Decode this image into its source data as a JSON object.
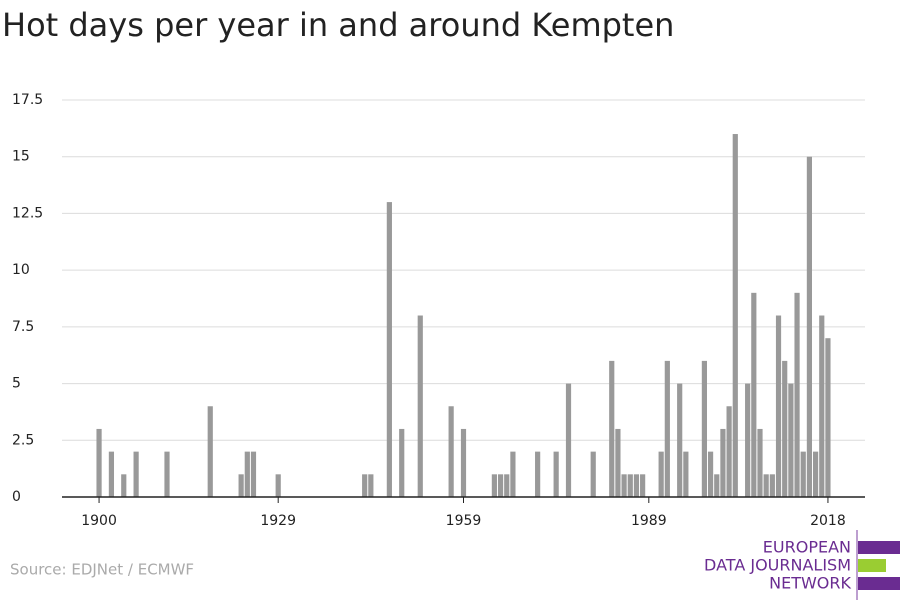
{
  "chart_data": {
    "type": "bar",
    "title": "Hot days per year in and around Kempten",
    "source": "Source: EDJNet / ECMWF",
    "color": "#999999",
    "grid": true,
    "x": [
      1900,
      1902,
      1904,
      1906,
      1911,
      1918,
      1923,
      1924,
      1925,
      1929,
      1943,
      1944,
      1947,
      1949,
      1952,
      1957,
      1959,
      1964,
      1965,
      1966,
      1967,
      1971,
      1974,
      1976,
      1980,
      1983,
      1984,
      1985,
      1986,
      1987,
      1988,
      1991,
      1992,
      1994,
      1995,
      1998,
      1999,
      2000,
      2001,
      2002,
      2003,
      2005,
      2006,
      2007,
      2008,
      2009,
      2010,
      2011,
      2012,
      2013,
      2014,
      2015,
      2016,
      2017,
      2018
    ],
    "values": [
      3,
      2,
      1,
      2,
      2,
      4,
      1,
      2,
      2,
      1,
      1,
      1,
      13,
      3,
      8,
      4,
      3,
      1,
      1,
      1,
      2,
      2,
      2,
      5,
      2,
      6,
      3,
      1,
      1,
      1,
      1,
      2,
      6,
      5,
      2,
      6,
      2,
      1,
      3,
      4,
      16,
      5,
      9,
      3,
      1,
      1,
      8,
      6,
      5,
      9,
      2,
      15,
      2,
      8,
      7
    ],
    "xlim": [
      1894,
      2024
    ],
    "xticks": [
      1900,
      1929,
      1959,
      1989,
      2018
    ],
    "ylim": [
      0,
      17.5
    ],
    "yticks": [
      0,
      2.5,
      5,
      7.5,
      10,
      12.5,
      15,
      17.5
    ]
  },
  "logo": {
    "lines": [
      "EUROPEAN",
      "DATA JOURNALISM",
      "NETWORK"
    ]
  }
}
